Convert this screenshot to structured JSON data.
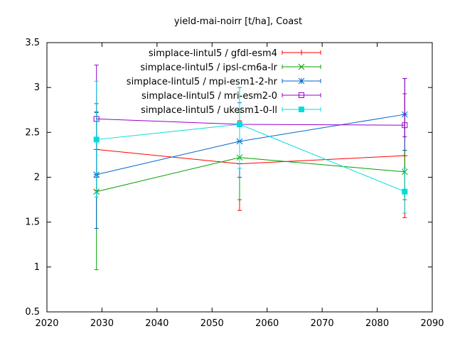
{
  "chart_data": {
    "type": "line",
    "title": "yield-mai-noirr [t/ha], Coast",
    "xlabel": "",
    "ylabel": "",
    "xlim": [
      2020,
      2090
    ],
    "ylim": [
      0.5,
      3.5
    ],
    "xticks": [
      2020,
      2030,
      2040,
      2050,
      2060,
      2070,
      2080,
      2090
    ],
    "yticks": [
      0.5,
      1,
      1.5,
      2,
      2.5,
      3,
      3.5
    ],
    "xtick_labels": [
      "2020",
      "2030",
      "2040",
      "2050",
      "2060",
      "2070",
      "2080",
      "2090"
    ],
    "ytick_labels": [
      "0.5",
      "1",
      "1.5",
      "2",
      "2.5",
      "3",
      "3.5"
    ],
    "grid": false,
    "legend_position": "top-right",
    "series": [
      {
        "name": "simplace-lintul5 / gfdl-esm4",
        "color": "#ff0000",
        "marker": "plus",
        "x": [
          2029,
          2055,
          2085
        ],
        "y": [
          2.31,
          2.15,
          2.24
        ],
        "err_low": [
          1.85,
          1.63,
          1.55
        ],
        "err_high": [
          2.82,
          2.63,
          2.93
        ]
      },
      {
        "name": "simplace-lintul5 / ipsl-cm6a-lr",
        "color": "#00a000",
        "marker": "x",
        "x": [
          2029,
          2055,
          2085
        ],
        "y": [
          1.84,
          2.22,
          2.06
        ],
        "err_low": [
          0.97,
          1.75,
          1.75
        ],
        "err_high": [
          2.73,
          2.73,
          2.3
        ]
      },
      {
        "name": "simplace-lintul5 / mpi-esm1-2-hr",
        "color": "#0066cc",
        "marker": "star",
        "x": [
          2029,
          2055,
          2085
        ],
        "y": [
          2.03,
          2.4,
          2.7
        ],
        "err_low": [
          1.43,
          2.0,
          2.3
        ],
        "err_high": [
          2.72,
          2.83,
          3.1
        ]
      },
      {
        "name": "simplace-lintul5 / mri-esm2-0",
        "color": "#9900cc",
        "marker": "open-square",
        "x": [
          2029,
          2055,
          2085
        ],
        "y": [
          2.65,
          2.59,
          2.58
        ],
        "err_low": [
          2.0,
          2.15,
          2.45
        ],
        "err_high": [
          3.25,
          3.0,
          3.1
        ]
      },
      {
        "name": "simplace-lintul5 / ukesm1-0-ll",
        "color": "#00dddd",
        "marker": "filled-square",
        "x": [
          2029,
          2055,
          2085
        ],
        "y": [
          2.42,
          2.59,
          1.84
        ],
        "err_low": [
          1.78,
          2.1,
          1.6
        ],
        "err_high": [
          3.07,
          3.0,
          2.1
        ]
      }
    ]
  }
}
